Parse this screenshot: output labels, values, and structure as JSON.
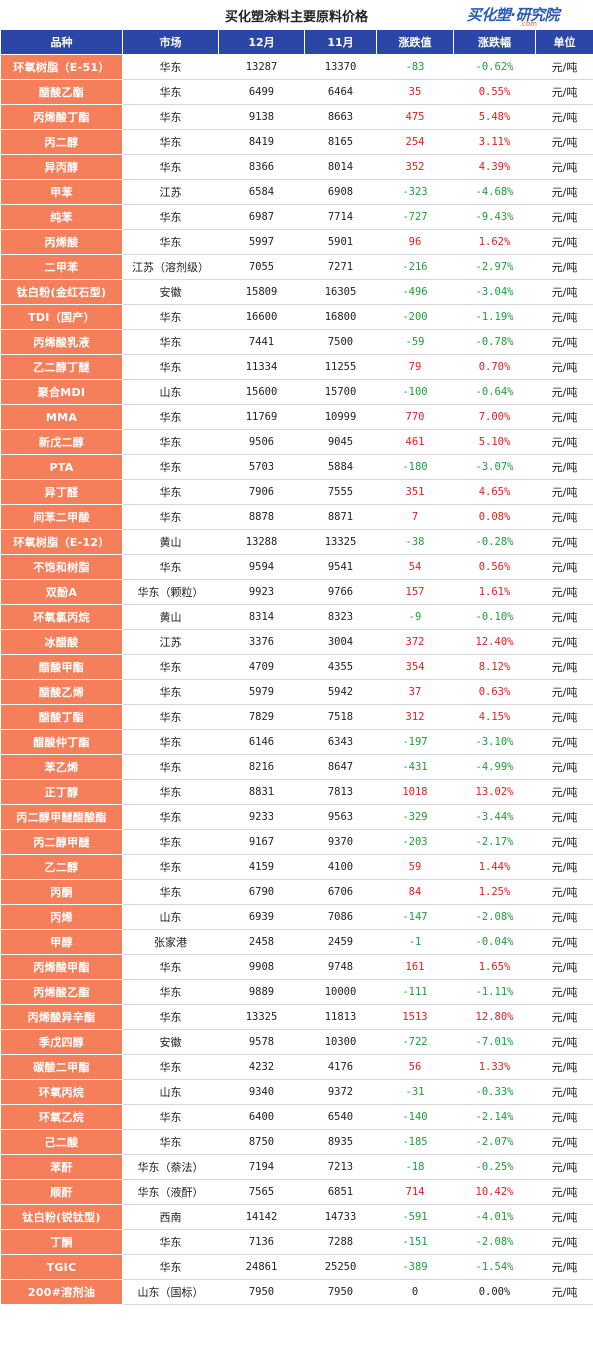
{
  "header": {
    "title": "买化塑涂料主要原料价格",
    "logo": "买化塑·研究院",
    "logo_sub": ".com"
  },
  "table": {
    "columns": [
      "品种",
      "市场",
      "12月",
      "11月",
      "涨跌值",
      "涨跌幅",
      "单位"
    ],
    "rows": [
      [
        "环氧树脂（E-51）",
        "华东",
        "13287",
        "13370",
        "-83",
        "-0.62%",
        "元/吨"
      ],
      [
        "醋酸乙酯",
        "华东",
        "6499",
        "6464",
        "35",
        "0.55%",
        "元/吨"
      ],
      [
        "丙烯酸丁酯",
        "华东",
        "9138",
        "8663",
        "475",
        "5.48%",
        "元/吨"
      ],
      [
        "丙二醇",
        "华东",
        "8419",
        "8165",
        "254",
        "3.11%",
        "元/吨"
      ],
      [
        "异丙醇",
        "华东",
        "8366",
        "8014",
        "352",
        "4.39%",
        "元/吨"
      ],
      [
        "甲苯",
        "江苏",
        "6584",
        "6908",
        "-323",
        "-4.68%",
        "元/吨"
      ],
      [
        "纯苯",
        "华东",
        "6987",
        "7714",
        "-727",
        "-9.43%",
        "元/吨"
      ],
      [
        "丙烯酸",
        "华东",
        "5997",
        "5901",
        "96",
        "1.62%",
        "元/吨"
      ],
      [
        "二甲苯",
        "江苏（溶剂级）",
        "7055",
        "7271",
        "-216",
        "-2.97%",
        "元/吨"
      ],
      [
        "钛白粉(金红石型)",
        "安徽",
        "15809",
        "16305",
        "-496",
        "-3.04%",
        "元/吨"
      ],
      [
        "TDI（国产）",
        "华东",
        "16600",
        "16800",
        "-200",
        "-1.19%",
        "元/吨"
      ],
      [
        "丙烯酸乳液",
        "华东",
        "7441",
        "7500",
        "-59",
        "-0.78%",
        "元/吨"
      ],
      [
        "乙二醇丁醚",
        "华东",
        "11334",
        "11255",
        "79",
        "0.70%",
        "元/吨"
      ],
      [
        "聚合MDI",
        "山东",
        "15600",
        "15700",
        "-100",
        "-0.64%",
        "元/吨"
      ],
      [
        "MMA",
        "华东",
        "11769",
        "10999",
        "770",
        "7.00%",
        "元/吨"
      ],
      [
        "新戊二醇",
        "华东",
        "9506",
        "9045",
        "461",
        "5.10%",
        "元/吨"
      ],
      [
        "PTA",
        "华东",
        "5703",
        "5884",
        "-180",
        "-3.07%",
        "元/吨"
      ],
      [
        "异丁醛",
        "华东",
        "7906",
        "7555",
        "351",
        "4.65%",
        "元/吨"
      ],
      [
        "间苯二甲酸",
        "华东",
        "8878",
        "8871",
        "7",
        "0.08%",
        "元/吨"
      ],
      [
        "环氧树脂（E-12）",
        "黄山",
        "13288",
        "13325",
        "-38",
        "-0.28%",
        "元/吨"
      ],
      [
        "不饱和树脂",
        "华东",
        "9594",
        "9541",
        "54",
        "0.56%",
        "元/吨"
      ],
      [
        "双酚A",
        "华东（颗粒）",
        "9923",
        "9766",
        "157",
        "1.61%",
        "元/吨"
      ],
      [
        "环氧氯丙烷",
        "黄山",
        "8314",
        "8323",
        "-9",
        "-0.10%",
        "元/吨"
      ],
      [
        "冰醋酸",
        "江苏",
        "3376",
        "3004",
        "372",
        "12.40%",
        "元/吨"
      ],
      [
        "醋酸甲酯",
        "华东",
        "4709",
        "4355",
        "354",
        "8.12%",
        "元/吨"
      ],
      [
        "醋酸乙烯",
        "华东",
        "5979",
        "5942",
        "37",
        "0.63%",
        "元/吨"
      ],
      [
        "醋酸丁酯",
        "华东",
        "7829",
        "7518",
        "312",
        "4.15%",
        "元/吨"
      ],
      [
        "醋酸仲丁酯",
        "华东",
        "6146",
        "6343",
        "-197",
        "-3.10%",
        "元/吨"
      ],
      [
        "苯乙烯",
        "华东",
        "8216",
        "8647",
        "-431",
        "-4.99%",
        "元/吨"
      ],
      [
        "正丁醇",
        "华东",
        "8831",
        "7813",
        "1018",
        "13.02%",
        "元/吨"
      ],
      [
        "丙二醇甲醚醋酸酯",
        "华东",
        "9233",
        "9563",
        "-329",
        "-3.44%",
        "元/吨"
      ],
      [
        "丙二醇甲醚",
        "华东",
        "9167",
        "9370",
        "-203",
        "-2.17%",
        "元/吨"
      ],
      [
        "乙二醇",
        "华东",
        "4159",
        "4100",
        "59",
        "1.44%",
        "元/吨"
      ],
      [
        "丙酮",
        "华东",
        "6790",
        "6706",
        "84",
        "1.25%",
        "元/吨"
      ],
      [
        "丙烯",
        "山东",
        "6939",
        "7086",
        "-147",
        "-2.08%",
        "元/吨"
      ],
      [
        "甲醇",
        "张家港",
        "2458",
        "2459",
        "-1",
        "-0.04%",
        "元/吨"
      ],
      [
        "丙烯酸甲酯",
        "华东",
        "9908",
        "9748",
        "161",
        "1.65%",
        "元/吨"
      ],
      [
        "丙烯酸乙酯",
        "华东",
        "9889",
        "10000",
        "-111",
        "-1.11%",
        "元/吨"
      ],
      [
        "丙烯酸异辛酯",
        "华东",
        "13325",
        "11813",
        "1513",
        "12.80%",
        "元/吨"
      ],
      [
        "季戊四醇",
        "安徽",
        "9578",
        "10300",
        "-722",
        "-7.01%",
        "元/吨"
      ],
      [
        "碳酸二甲酯",
        "华东",
        "4232",
        "4176",
        "56",
        "1.33%",
        "元/吨"
      ],
      [
        "环氧丙烷",
        "山东",
        "9340",
        "9372",
        "-31",
        "-0.33%",
        "元/吨"
      ],
      [
        "环氧乙烷",
        "华东",
        "6400",
        "6540",
        "-140",
        "-2.14%",
        "元/吨"
      ],
      [
        "己二酸",
        "华东",
        "8750",
        "8935",
        "-185",
        "-2.07%",
        "元/吨"
      ],
      [
        "苯酐",
        "华东（萘法）",
        "7194",
        "7213",
        "-18",
        "-0.25%",
        "元/吨"
      ],
      [
        "顺酐",
        "华东（液酐）",
        "7565",
        "6851",
        "714",
        "10.42%",
        "元/吨"
      ],
      [
        "钛白粉(锐钛型)",
        "西南",
        "14142",
        "14733",
        "-591",
        "-4.01%",
        "元/吨"
      ],
      [
        "丁酮",
        "华东",
        "7136",
        "7288",
        "-151",
        "-2.08%",
        "元/吨"
      ],
      [
        "TGIC",
        "华东",
        "24861",
        "25250",
        "-389",
        "-1.54%",
        "元/吨"
      ],
      [
        "200#溶剂油",
        "山东（国标）",
        "7950",
        "7950",
        "0",
        "0.00%",
        "元/吨"
      ]
    ]
  },
  "colors": {
    "header_bg": "#2b46a6",
    "name_bg": "#f57f5b",
    "up": "#e02020",
    "down": "#1e9e3a"
  }
}
